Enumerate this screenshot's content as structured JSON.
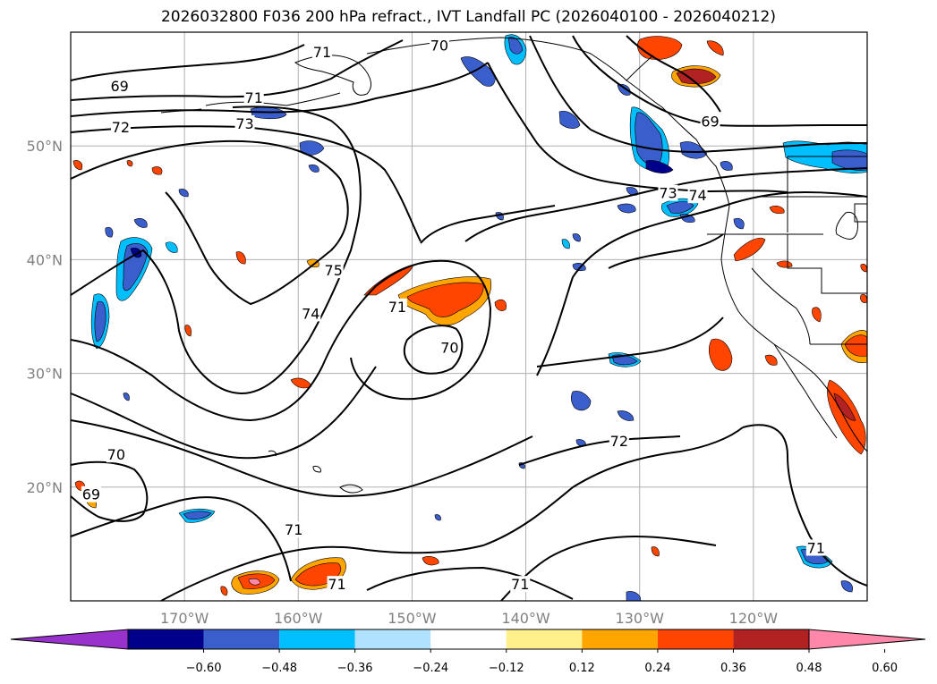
{
  "title": "2026032800 F036 200 hPa refract., IVT Landfall PC (2026040100 - 2026040212)",
  "map": {
    "projection": "PlateCarree",
    "lon_range": [
      -180,
      -110
    ],
    "lat_range": [
      10,
      60
    ],
    "longitude_labels": [
      "170°W",
      "160°W",
      "150°W",
      "140°W",
      "130°W",
      "120°W"
    ],
    "latitude_labels": [
      "50°N",
      "40°N",
      "30°N",
      "20°N"
    ],
    "gridlines": true,
    "contour_labels": [
      {
        "text": "69",
        "lon": -175.7,
        "lat": 55.2
      },
      {
        "text": "71",
        "lon": -163.9,
        "lat": 54.2
      },
      {
        "text": "72",
        "lon": -175.6,
        "lat": 51.6
      },
      {
        "text": "73",
        "lon": -164.7,
        "lat": 51.9
      },
      {
        "text": "71",
        "lon": -157.9,
        "lat": 58.2
      },
      {
        "text": "70",
        "lon": -147.6,
        "lat": 58.8
      },
      {
        "text": "69",
        "lon": -123.8,
        "lat": 52.1
      },
      {
        "text": "73",
        "lon": -127.5,
        "lat": 45.8
      },
      {
        "text": "74",
        "lon": -124.9,
        "lat": 45.6
      },
      {
        "text": "75",
        "lon": -156.9,
        "lat": 39.0
      },
      {
        "text": "74",
        "lon": -158.9,
        "lat": 35.2
      },
      {
        "text": "71",
        "lon": -151.3,
        "lat": 35.8
      },
      {
        "text": "70",
        "lon": -146.7,
        "lat": 32.2
      },
      {
        "text": "72",
        "lon": -131.8,
        "lat": 24.0
      },
      {
        "text": "70",
        "lon": -176.0,
        "lat": 22.8
      },
      {
        "text": "69",
        "lon": -178.2,
        "lat": 19.3
      },
      {
        "text": "71",
        "lon": -160.4,
        "lat": 16.2
      },
      {
        "text": "71",
        "lon": -156.6,
        "lat": 11.4
      },
      {
        "text": "71",
        "lon": -140.5,
        "lat": 11.4
      },
      {
        "text": "71",
        "lon": -114.5,
        "lat": 14.6
      }
    ]
  },
  "colorbar": {
    "ticks": [
      "−0.60",
      "−0.48",
      "−0.36",
      "−0.24",
      "−0.12",
      "0.12",
      "0.24",
      "0.36",
      "0.48",
      "0.60"
    ],
    "colors": [
      "#9932cc",
      "#00008b",
      "#3a5fcd",
      "#00bfff",
      "#b0e2ff",
      "#ffffff",
      "#fff08c",
      "#ffa500",
      "#ff4500",
      "#b22222",
      "#ff88aa"
    ],
    "extend": "both"
  },
  "colors": {
    "positive_center": "#ff4500",
    "positive_edge": "#ffa500",
    "negative_center": "#3a5fcd",
    "negative_edge": "#00bfff",
    "contour": "#000000",
    "grid": "#b0b0b0"
  }
}
